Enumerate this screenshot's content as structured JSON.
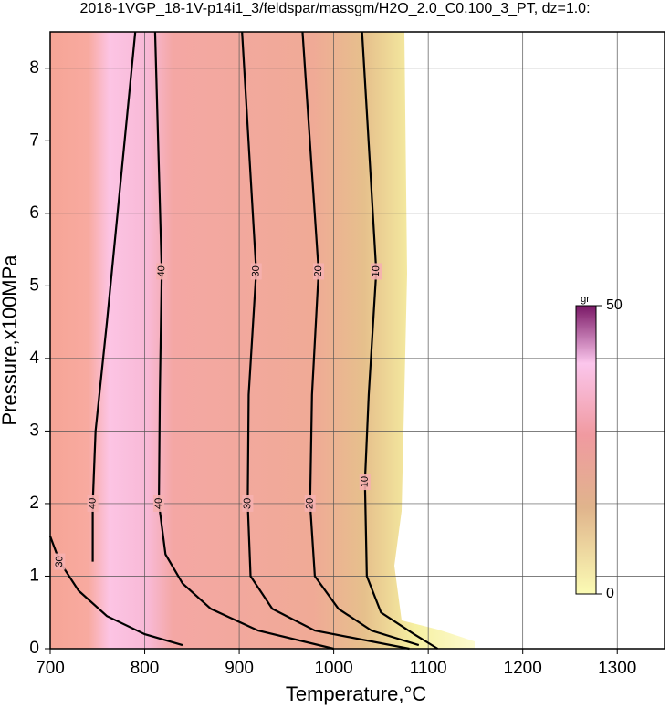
{
  "chart_data": {
    "type": "contour",
    "title": "2018-1VGP_18-1V-p14i1_3/feldspar/massgm/H2O_2.0_C0.100_3_PT, dz=1.0:",
    "x_label": "Temperature,°C",
    "y_label": "Pressure,x100MPa",
    "xlim": [
      700,
      1350
    ],
    "xticks": [
      700,
      800,
      900,
      1000,
      1100,
      1200,
      1300
    ],
    "ylim": [
      0,
      8.5
    ],
    "yticks": [
      0,
      1,
      2,
      3,
      4,
      5,
      6,
      7,
      8
    ],
    "grid": true,
    "contours": [
      {
        "level": 40,
        "x": [
          745,
          745,
          748,
          760,
          775,
          790
        ],
        "y": [
          1.2,
          2,
          3,
          4.5,
          6.5,
          8.5
        ]
      },
      {
        "level": 30,
        "x": [
          700,
          710,
          730,
          760,
          800,
          840
        ],
        "y": [
          1.55,
          1.2,
          0.8,
          0.45,
          0.2,
          0.05
        ]
      },
      {
        "level": 40,
        "x": [
          811,
          818,
          816,
          815,
          822,
          840,
          870,
          920,
          1000
        ],
        "y": [
          8.5,
          5.2,
          3.5,
          2,
          1.3,
          0.9,
          0.55,
          0.25,
          0
        ]
      },
      {
        "level": 30,
        "x": [
          903,
          918,
          910,
          909,
          912,
          935,
          980,
          1080
        ],
        "y": [
          8.5,
          5.2,
          3.5,
          2,
          1,
          0.55,
          0.25,
          0
        ]
      },
      {
        "level": 20,
        "x": [
          967,
          984,
          977,
          975,
          980,
          1005,
          1040,
          1090
        ],
        "y": [
          8.5,
          5.2,
          3.5,
          2,
          1,
          0.55,
          0.25,
          0.05
        ]
      },
      {
        "level": 10,
        "x": [
          1030,
          1045,
          1037,
          1033,
          1035,
          1050,
          1085,
          1110
        ],
        "y": [
          8.5,
          5.2,
          3.5,
          2.3,
          1,
          0.5,
          0.2,
          0
        ]
      }
    ],
    "colorbar": {
      "label": "gr",
      "lim": [
        0,
        50
      ],
      "ticks": [
        0,
        50
      ]
    }
  }
}
